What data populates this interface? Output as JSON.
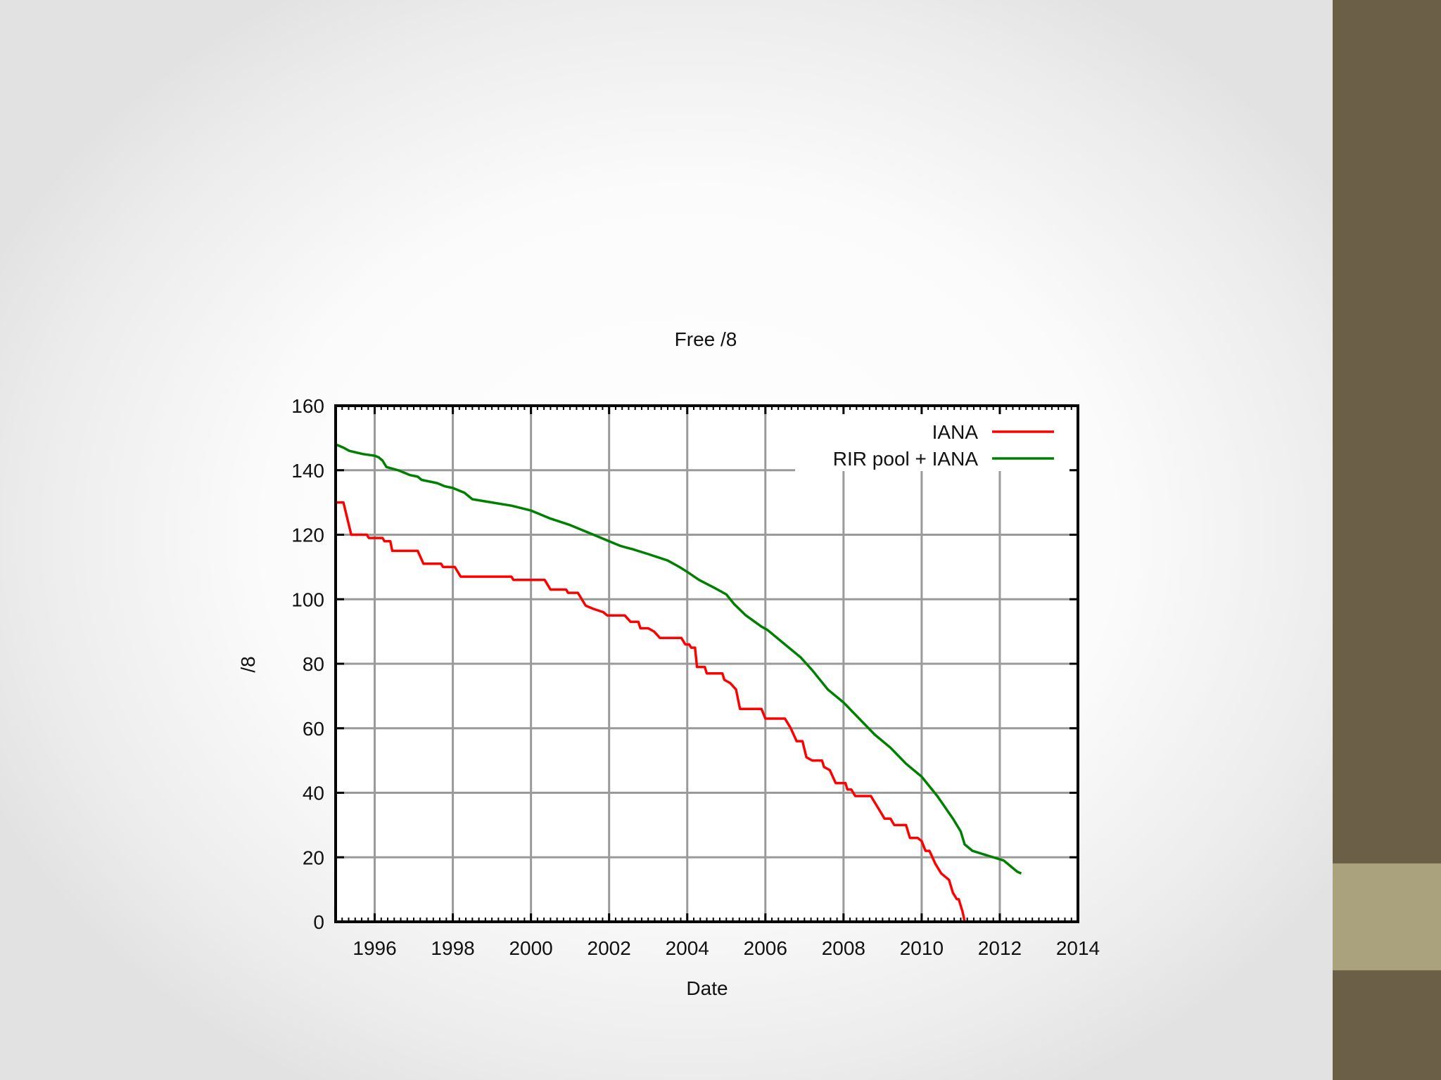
{
  "chart_data": {
    "type": "line",
    "title": "Free /8",
    "xlabel": "Date",
    "ylabel": "/8",
    "xlim": [
      1995.0,
      2014.0
    ],
    "ylim": [
      0,
      160
    ],
    "x_ticks": [
      "1996",
      "1998",
      "2000",
      "2002",
      "2004",
      "2006",
      "2008",
      "2010",
      "2012",
      "2014"
    ],
    "y_ticks": [
      "0",
      "20",
      "40",
      "60",
      "80",
      "100",
      "120",
      "140",
      "160"
    ],
    "grid": true,
    "legend_position": "top-right",
    "series": [
      {
        "name": "IANA",
        "color": "#ff0000",
        "points": [
          [
            1995.0,
            130
          ],
          [
            1995.2,
            130
          ],
          [
            1995.4,
            120
          ],
          [
            1995.8,
            120
          ],
          [
            1995.85,
            119
          ],
          [
            1996.2,
            119
          ],
          [
            1996.25,
            118
          ],
          [
            1996.4,
            118
          ],
          [
            1996.45,
            115
          ],
          [
            1997.1,
            115
          ],
          [
            1997.25,
            111
          ],
          [
            1997.7,
            111
          ],
          [
            1997.75,
            110
          ],
          [
            1998.05,
            110
          ],
          [
            1998.2,
            107
          ],
          [
            1999.5,
            107
          ],
          [
            1999.55,
            106
          ],
          [
            2000.35,
            106
          ],
          [
            2000.5,
            103
          ],
          [
            2000.9,
            103
          ],
          [
            2000.95,
            102
          ],
          [
            2001.2,
            102
          ],
          [
            2001.4,
            98
          ],
          [
            2001.6,
            97
          ],
          [
            2001.85,
            96
          ],
          [
            2001.95,
            95
          ],
          [
            2002.4,
            95
          ],
          [
            2002.55,
            93
          ],
          [
            2002.75,
            93
          ],
          [
            2002.8,
            91
          ],
          [
            2003.0,
            91
          ],
          [
            2003.15,
            90
          ],
          [
            2003.3,
            88
          ],
          [
            2003.85,
            88
          ],
          [
            2003.95,
            86
          ],
          [
            2004.05,
            86
          ],
          [
            2004.1,
            85
          ],
          [
            2004.2,
            85
          ],
          [
            2004.25,
            79
          ],
          [
            2004.45,
            79
          ],
          [
            2004.5,
            77
          ],
          [
            2004.9,
            77
          ],
          [
            2004.95,
            75
          ],
          [
            2005.1,
            74
          ],
          [
            2005.25,
            72
          ],
          [
            2005.35,
            66
          ],
          [
            2005.9,
            66
          ],
          [
            2006.0,
            63
          ],
          [
            2006.5,
            63
          ],
          [
            2006.65,
            60
          ],
          [
            2006.8,
            56
          ],
          [
            2006.95,
            56
          ],
          [
            2007.05,
            51
          ],
          [
            2007.2,
            50
          ],
          [
            2007.45,
            50
          ],
          [
            2007.5,
            48
          ],
          [
            2007.65,
            47
          ],
          [
            2007.8,
            43
          ],
          [
            2008.05,
            43
          ],
          [
            2008.1,
            41
          ],
          [
            2008.2,
            41
          ],
          [
            2008.3,
            39
          ],
          [
            2008.7,
            39
          ],
          [
            2008.9,
            35
          ],
          [
            2009.05,
            32
          ],
          [
            2009.2,
            32
          ],
          [
            2009.3,
            30
          ],
          [
            2009.6,
            30
          ],
          [
            2009.7,
            26
          ],
          [
            2009.9,
            26
          ],
          [
            2010.0,
            25
          ],
          [
            2010.1,
            22
          ],
          [
            2010.2,
            22
          ],
          [
            2010.35,
            18
          ],
          [
            2010.4,
            17
          ],
          [
            2010.5,
            15
          ],
          [
            2010.6,
            14
          ],
          [
            2010.7,
            13
          ],
          [
            2010.8,
            9
          ],
          [
            2010.9,
            7
          ],
          [
            2010.95,
            7
          ],
          [
            2011.05,
            3
          ],
          [
            2011.1,
            0
          ],
          [
            2012.5,
            0
          ]
        ]
      },
      {
        "name": "RIR pool + IANA",
        "color": "#008000",
        "points": [
          [
            1995.0,
            148
          ],
          [
            1995.2,
            147
          ],
          [
            1995.35,
            146
          ],
          [
            1995.7,
            145
          ],
          [
            1996.0,
            144.5
          ],
          [
            1996.1,
            144
          ],
          [
            1996.2,
            143
          ],
          [
            1996.3,
            141
          ],
          [
            1996.6,
            140
          ],
          [
            1996.8,
            139
          ],
          [
            1996.9,
            138.5
          ],
          [
            1997.1,
            138
          ],
          [
            1997.2,
            137
          ],
          [
            1997.6,
            136
          ],
          [
            1997.8,
            135
          ],
          [
            1998.0,
            134.5
          ],
          [
            1998.3,
            133
          ],
          [
            1998.5,
            131
          ],
          [
            1999.0,
            130
          ],
          [
            1999.5,
            129
          ],
          [
            2000.0,
            127.5
          ],
          [
            2000.5,
            125
          ],
          [
            2001.0,
            123
          ],
          [
            2001.3,
            121.5
          ],
          [
            2001.6,
            120
          ],
          [
            2002.0,
            118
          ],
          [
            2002.3,
            116.5
          ],
          [
            2002.6,
            115.5
          ],
          [
            2003.0,
            114
          ],
          [
            2003.5,
            112
          ],
          [
            2003.8,
            110
          ],
          [
            2004.0,
            108.5
          ],
          [
            2004.3,
            106
          ],
          [
            2004.7,
            103.5
          ],
          [
            2005.0,
            101.5
          ],
          [
            2005.2,
            98.5
          ],
          [
            2005.5,
            95
          ],
          [
            2005.9,
            91.5
          ],
          [
            2006.05,
            90.5
          ],
          [
            2006.5,
            86
          ],
          [
            2006.9,
            82
          ],
          [
            2007.2,
            78
          ],
          [
            2007.6,
            72
          ],
          [
            2008.0,
            68
          ],
          [
            2008.4,
            63
          ],
          [
            2008.8,
            58
          ],
          [
            2009.2,
            54
          ],
          [
            2009.6,
            49
          ],
          [
            2010.0,
            45
          ],
          [
            2010.4,
            39
          ],
          [
            2010.8,
            32
          ],
          [
            2011.0,
            28
          ],
          [
            2011.1,
            24
          ],
          [
            2011.3,
            22
          ],
          [
            2011.7,
            20.5
          ],
          [
            2012.1,
            19
          ],
          [
            2012.3,
            17
          ],
          [
            2012.45,
            15.5
          ],
          [
            2012.55,
            15
          ]
        ]
      }
    ]
  }
}
